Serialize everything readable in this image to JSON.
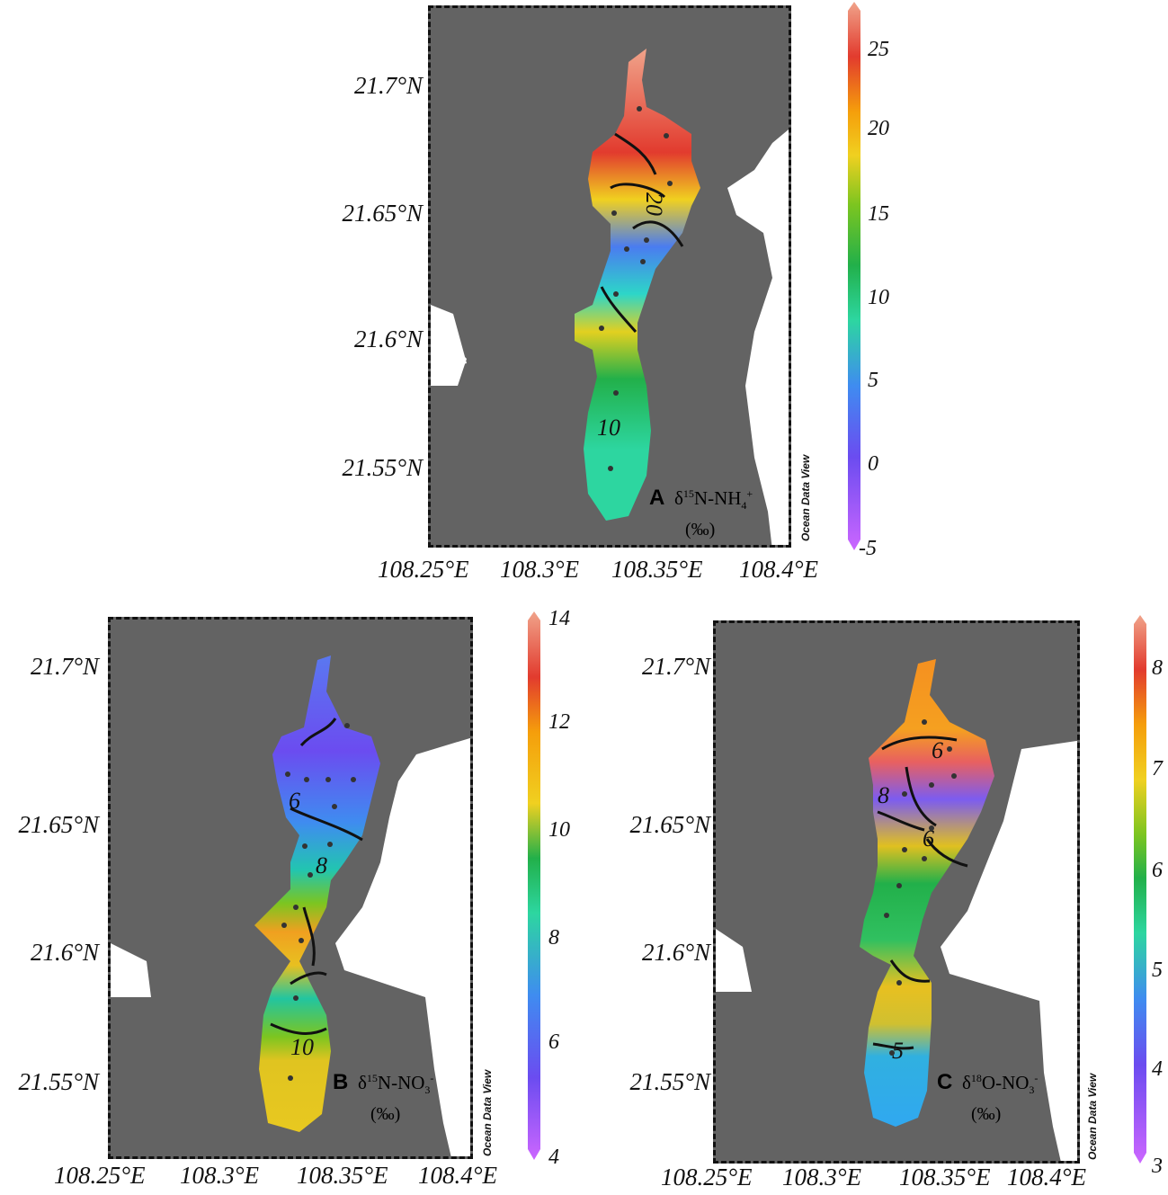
{
  "map_common": {
    "lat_labels": [
      "21.7°N",
      "21.65°N",
      "21.6°N",
      "21.55°N"
    ],
    "lon_labels": [
      "108.25°E",
      "108.3°E",
      "108.35°E",
      "108.4°E"
    ],
    "watermark": "Ocean Data View",
    "unit_text": "(‰)"
  },
  "panels": [
    {
      "id": "A",
      "label": "A",
      "variable_main": "δ",
      "variable_mass": "15",
      "variable_rest": "N-NH",
      "variable_sub": "4",
      "variable_sup": "+",
      "colorbar_ticks": [
        "25",
        "20",
        "15",
        "10",
        "5",
        "0",
        "-5"
      ],
      "contour_labels": [
        "20",
        "10"
      ]
    },
    {
      "id": "B",
      "label": "B",
      "variable_main": "δ",
      "variable_mass": "15",
      "variable_rest": "N-NO",
      "variable_sub": "3",
      "variable_sup": "-",
      "colorbar_ticks": [
        "14",
        "12",
        "10",
        "8",
        "6",
        "4"
      ],
      "contour_labels": [
        "6",
        "8",
        "10"
      ]
    },
    {
      "id": "C",
      "label": "C",
      "variable_main": "δ",
      "variable_mass": "18",
      "variable_rest": "O-NO",
      "variable_sub": "3",
      "variable_sup": "-",
      "colorbar_ticks": [
        "8",
        "7",
        "6",
        "5",
        "4",
        "3"
      ],
      "contour_labels": [
        "6",
        "8",
        "6",
        "5"
      ]
    }
  ],
  "colors": {
    "land": "#636363",
    "water": "#ffffff",
    "colorbar_stops": [
      "#cc66ff",
      "#6b4cf0",
      "#3f8cf0",
      "#2dd6c8",
      "#22c55e",
      "#7cc520",
      "#f0d020",
      "#f59e0b",
      "#e23b2e",
      "#f0a38a"
    ]
  }
}
